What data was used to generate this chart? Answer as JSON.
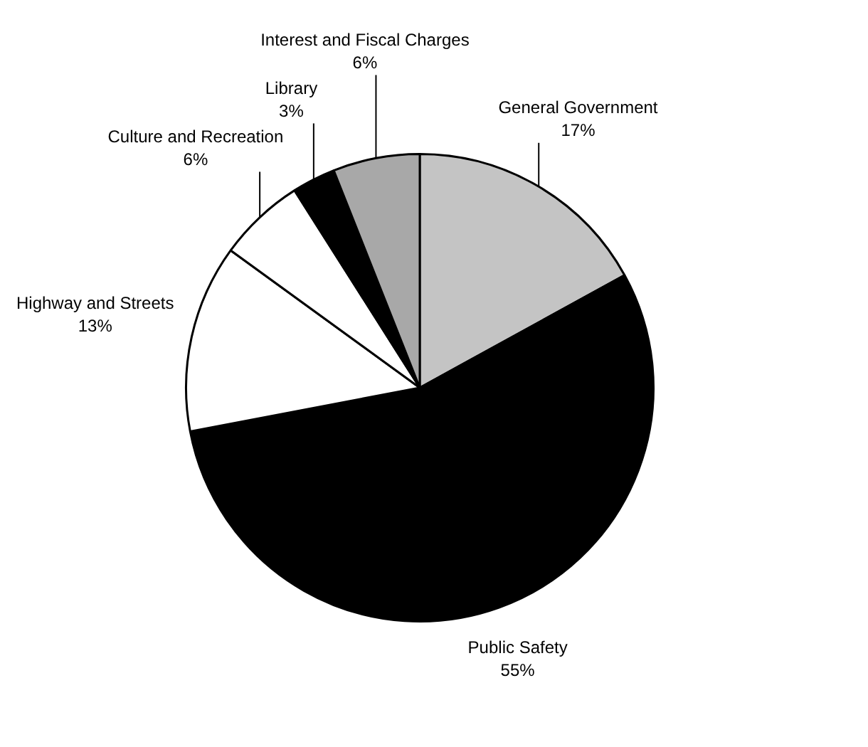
{
  "chart_data": {
    "type": "pie",
    "categories": [
      "General Government",
      "Public Safety",
      "Highway and Streets",
      "Culture and Recreation",
      "Library",
      "Interest and Fiscal Charges"
    ],
    "values": [
      17,
      55,
      13,
      6,
      3,
      6
    ],
    "value_labels": [
      "17%",
      "55%",
      "13%",
      "6%",
      "3%",
      "6%"
    ],
    "colors": [
      "#c4c4c4",
      "#000000",
      "#ffffff",
      "#ffffff",
      "#000000",
      "#a8a8a8"
    ],
    "legend": false
  }
}
